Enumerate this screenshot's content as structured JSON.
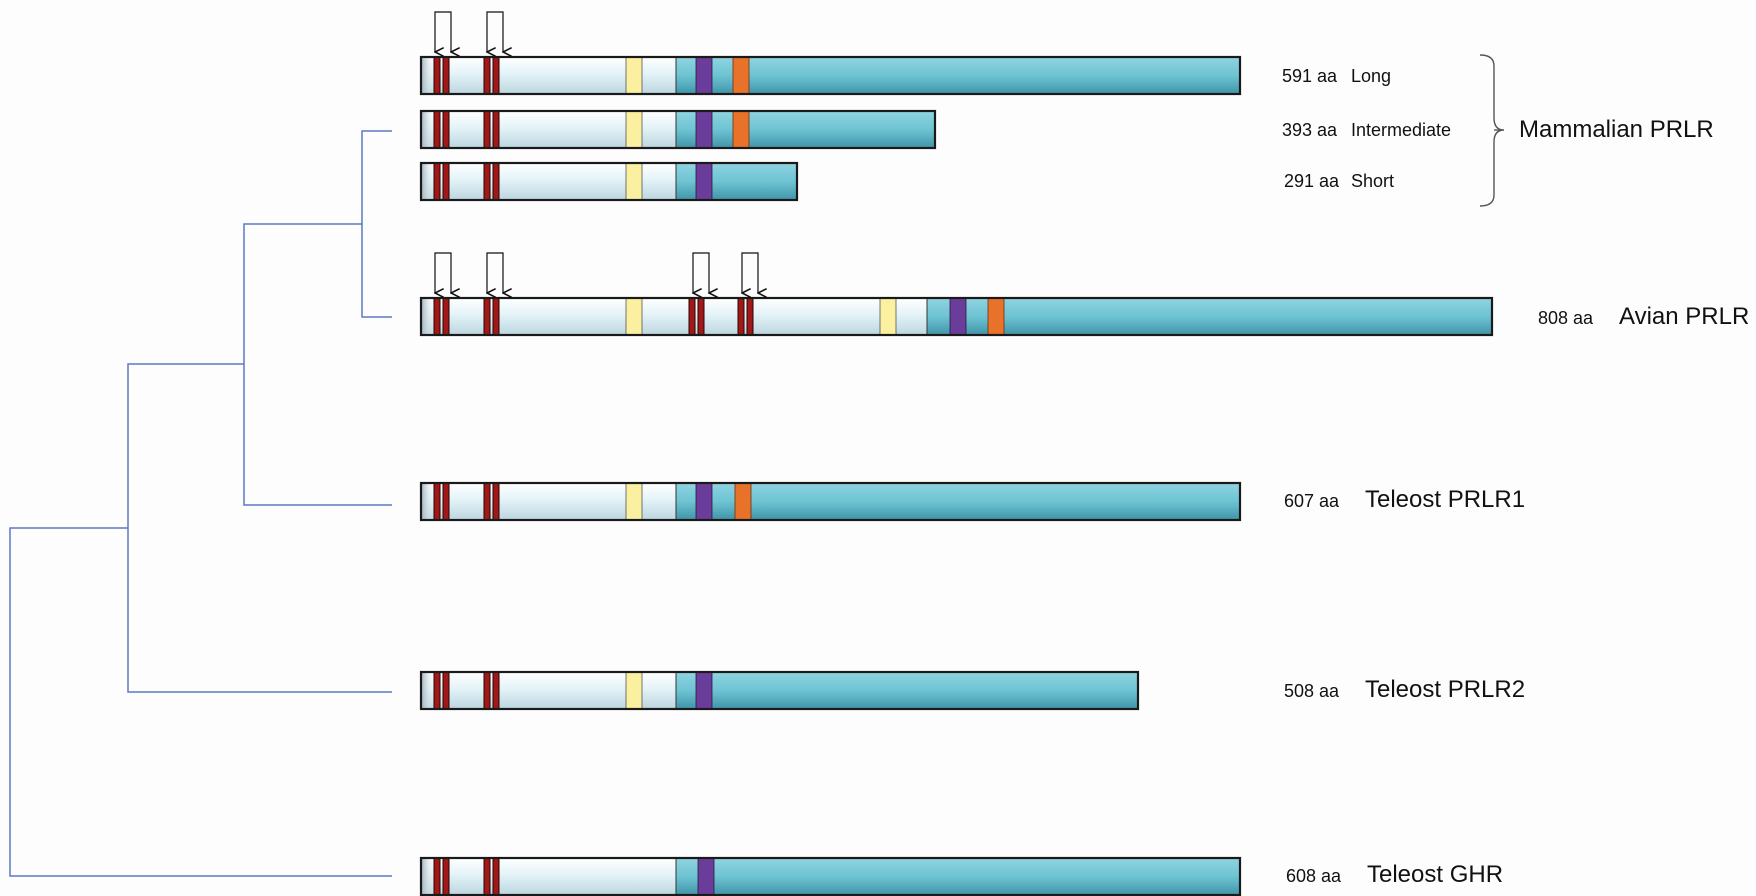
{
  "colors": {
    "extracellular": "#e2f2f8",
    "intracellular": "#6ec3d3",
    "cysteine": "#a01818",
    "transmembrane": "#faf0a0",
    "box1": "#6a3d9a",
    "box2": "#e8722a",
    "tree": "#5b7bc4",
    "outline": "#1a1a1a"
  },
  "receptors": [
    {
      "id": "long",
      "length": "591 aa",
      "label": "Long",
      "features": [
        "cysteine-pairs",
        "transmembrane",
        "box1",
        "box2"
      ],
      "glycosylation_arrows": 4
    },
    {
      "id": "intermediate",
      "length": "393 aa",
      "label": "Intermediate",
      "features": [
        "cysteine-pairs",
        "transmembrane",
        "box1",
        "box2"
      ]
    },
    {
      "id": "short",
      "length": "291 aa",
      "label": "Short",
      "features": [
        "cysteine-pairs",
        "transmembrane",
        "box1"
      ]
    },
    {
      "id": "avian",
      "length": "808 aa",
      "label": "Avian PRLR",
      "features": [
        "cysteine-pairs",
        "transmembrane",
        "cysteine-pairs",
        "transmembrane",
        "box1",
        "box2"
      ],
      "glycosylation_arrows": 8
    },
    {
      "id": "prlr1",
      "length": "607 aa",
      "label": "Teleost PRLR1",
      "features": [
        "cysteine-pairs",
        "transmembrane",
        "box1",
        "box2"
      ]
    },
    {
      "id": "prlr2",
      "length": "508 aa",
      "label": "Teleost PRLR2",
      "features": [
        "cysteine-pairs",
        "transmembrane",
        "box1"
      ]
    },
    {
      "id": "ghr",
      "length": "608 aa",
      "label": "Teleost GHR",
      "features": [
        "cysteine-pairs",
        "box1"
      ]
    }
  ],
  "group_label": "Mammalian PRLR"
}
